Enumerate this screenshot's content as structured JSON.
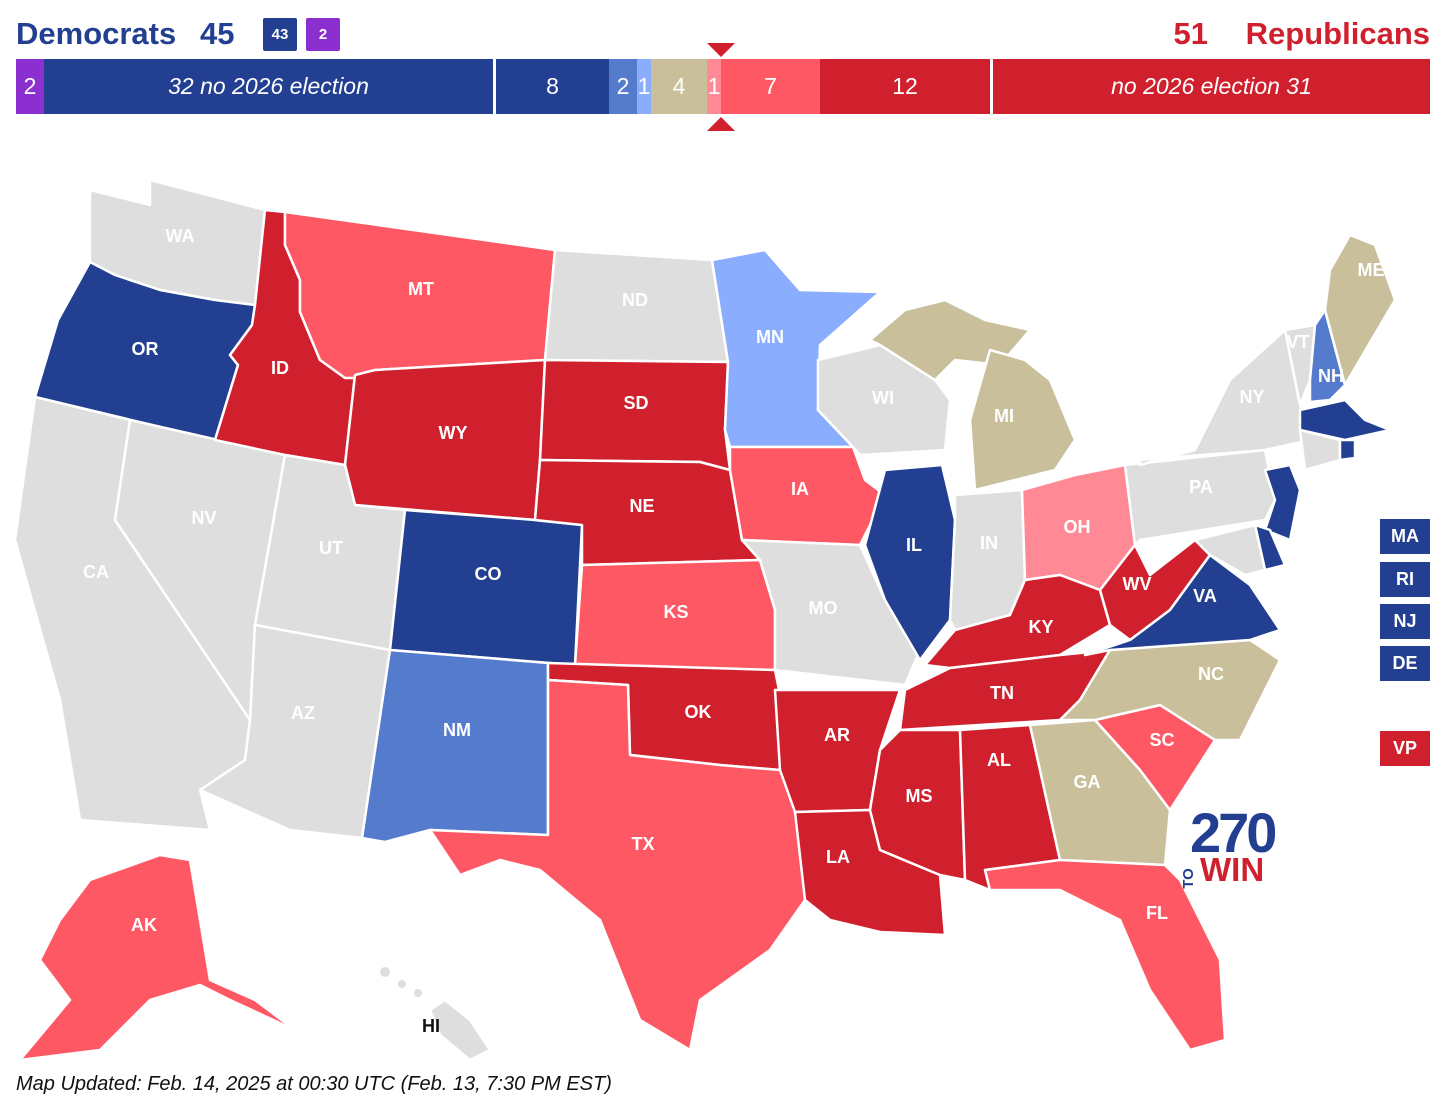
{
  "header": {
    "dem_title": "Democrats",
    "dem_total": "45",
    "dem_party_seats": "43",
    "ind_seats": "2",
    "rep_total": "51",
    "rep_title": "Republicans"
  },
  "seat_bar": [
    {
      "label": "2",
      "seats": 2,
      "color": "#8b2fd1",
      "italic": false
    },
    {
      "label": "32 no 2026 election",
      "seats": 32,
      "color": "#223f91",
      "italic": true
    },
    {
      "label": "8",
      "seats": 8,
      "color": "#223f91",
      "italic": false
    },
    {
      "label": "2",
      "seats": 2,
      "color": "#557bcd",
      "italic": false
    },
    {
      "label": "1",
      "seats": 1,
      "color": "#8aaefd",
      "italic": false
    },
    {
      "label": "4",
      "seats": 4,
      "color": "#c9bf9b",
      "italic": false
    },
    {
      "label": "1",
      "seats": 1,
      "color": "#ff8a96",
      "italic": false
    },
    {
      "label": "7",
      "seats": 7,
      "color": "#ff5865",
      "italic": false
    },
    {
      "label": "12",
      "seats": 12,
      "color": "#d1202d",
      "italic": false
    },
    {
      "label": "no 2026 election 31",
      "seats": 31,
      "color": "#d1202d",
      "italic": true
    }
  ],
  "colors": {
    "safe_dem": "#223f91",
    "likely_dem": "#557bcd",
    "lean_dem": "#8aaefd",
    "tossup": "#c9bf9b",
    "lean_rep": "#ff8a96",
    "likely_rep": "#ff5865",
    "safe_rep": "#d1202d",
    "no_election": "#dedede",
    "independent": "#8b2fd1"
  },
  "states": {
    "WA": "WA",
    "OR": "OR",
    "CA": "CA",
    "NV": "NV",
    "ID": "ID",
    "MT": "MT",
    "WY": "WY",
    "UT": "UT",
    "AZ": "AZ",
    "CO": "CO",
    "NM": "NM",
    "ND": "ND",
    "SD": "SD",
    "NE": "NE",
    "KS": "KS",
    "OK": "OK",
    "TX": "TX",
    "MN": "MN",
    "IA": "IA",
    "MO": "MO",
    "AR": "AR",
    "LA": "LA",
    "WI": "WI",
    "IL": "IL",
    "MS": "MS",
    "MI": "MI",
    "IN": "IN",
    "KY": "KY",
    "TN": "TN",
    "AL": "AL",
    "OH": "OH",
    "WV": "WV",
    "VA": "VA",
    "NC": "NC",
    "SC": "SC",
    "GA": "GA",
    "FL": "FL",
    "PA": "PA",
    "NY": "NY",
    "VT": "VT",
    "NH": "NH",
    "ME": "ME",
    "AK": "AK",
    "HI": "HI"
  },
  "small_states": [
    "MA",
    "RI",
    "NJ",
    "DE"
  ],
  "vp_label": "VP",
  "logo": {
    "number": "270",
    "to": "TO",
    "win": "WIN"
  },
  "footer": "Map Updated: Feb. 14, 2025 at 00:30 UTC (Feb. 13, 7:30 PM EST)"
}
